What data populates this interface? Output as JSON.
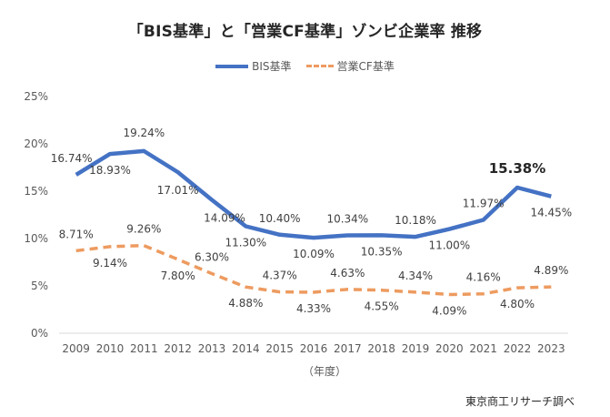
{
  "title": "「BIS基準」と「営業CF基準」ゾンビ企業率 推移",
  "x_unit_label": "（年度）",
  "source": "東京商工リサーチ調べ",
  "colors": {
    "bis": "#4472C4",
    "cf": "#ED9B60"
  },
  "chart_data": {
    "type": "line",
    "title": "「BIS基準」と「営業CF基準」ゾンビ企業率 推移",
    "xlabel": "（年度）",
    "ylabel": "",
    "categories": [
      "2009",
      "2010",
      "2011",
      "2012",
      "2013",
      "2014",
      "2015",
      "2016",
      "2017",
      "2018",
      "2019",
      "2020",
      "2021",
      "2022",
      "2023"
    ],
    "ylim": [
      0,
      25
    ],
    "yticks": [
      "0%",
      "5%",
      "10%",
      "15%",
      "20%",
      "25%"
    ],
    "grid": "baseline-only",
    "legend": "top-center",
    "series": [
      {
        "name": "BIS基準",
        "style": "solid",
        "values": [
          16.74,
          18.93,
          19.24,
          17.01,
          14.09,
          11.3,
          10.4,
          10.09,
          10.34,
          10.35,
          10.18,
          11.0,
          11.97,
          15.38,
          14.45
        ],
        "labels": [
          "16.74%",
          "18.93%",
          "19.24%",
          "17.01%",
          "14.09%",
          "11.30%",
          "10.40%",
          "10.09%",
          "10.34%",
          "10.35%",
          "10.18%",
          "11.00%",
          "11.97%",
          "15.38%",
          "14.45%"
        ],
        "highlight_index": 13
      },
      {
        "name": "営業CF基準",
        "style": "dashed",
        "values": [
          8.71,
          9.14,
          9.26,
          7.8,
          6.3,
          4.88,
          4.37,
          4.33,
          4.63,
          4.55,
          4.34,
          4.09,
          4.16,
          4.8,
          4.89
        ],
        "labels": [
          "8.71%",
          "9.14%",
          "9.26%",
          "7.80%",
          "6.30%",
          "4.88%",
          "4.37%",
          "4.33%",
          "4.63%",
          "4.55%",
          "4.34%",
          "4.09%",
          "4.16%",
          "4.80%",
          "4.89%"
        ]
      }
    ]
  }
}
